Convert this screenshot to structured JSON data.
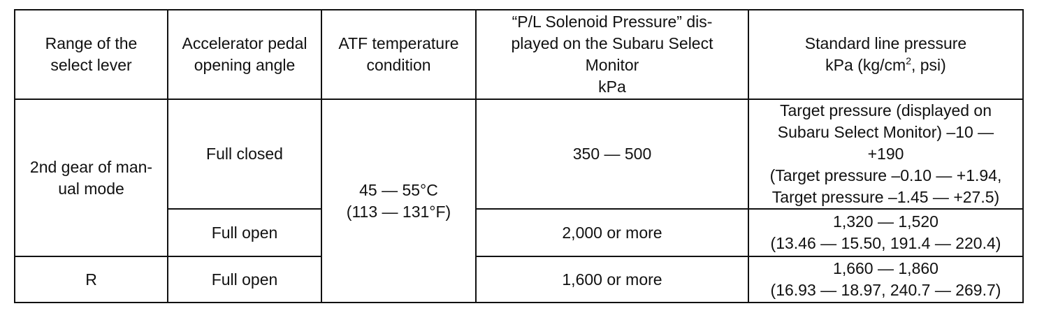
{
  "table": {
    "headers": {
      "range": [
        "Range of the",
        "select lever"
      ],
      "pedal": [
        "Accelerator pedal",
        "opening angle"
      ],
      "atf": [
        "ATF temperature",
        "condition"
      ],
      "pl": [
        "“P/L Solenoid Pressure” dis-",
        "played on the Subaru Select",
        "Monitor",
        "kPa"
      ],
      "std_line1": "Standard line pressure",
      "std_unit_pre": "kPa (kg/cm",
      "std_unit_sup": "2",
      "std_unit_post": ", psi)"
    },
    "rows": [
      {
        "range": [
          "2nd gear of man-",
          "ual mode"
        ],
        "pedal": "Full closed",
        "atf": [
          "45 — 55°C",
          "(113 — 131°F)"
        ],
        "pl": "350 — 500",
        "std": [
          "Target pressure (displayed on",
          "Subaru Select Monitor) –10 —",
          "+190",
          "(Target pressure –0.10 — +1.94,",
          "Target pressure –1.45 — +27.5)"
        ]
      },
      {
        "pedal": "Full open",
        "pl": "2,000 or more",
        "std": [
          "1,320 — 1,520",
          "(13.46 — 15.50, 191.4 — 220.4)"
        ]
      },
      {
        "range": "R",
        "pedal": "Full open",
        "pl": "1,600 or more",
        "std": [
          "1,660 — 1,860",
          "(16.93 — 18.97, 240.7 — 269.7)"
        ]
      }
    ]
  }
}
